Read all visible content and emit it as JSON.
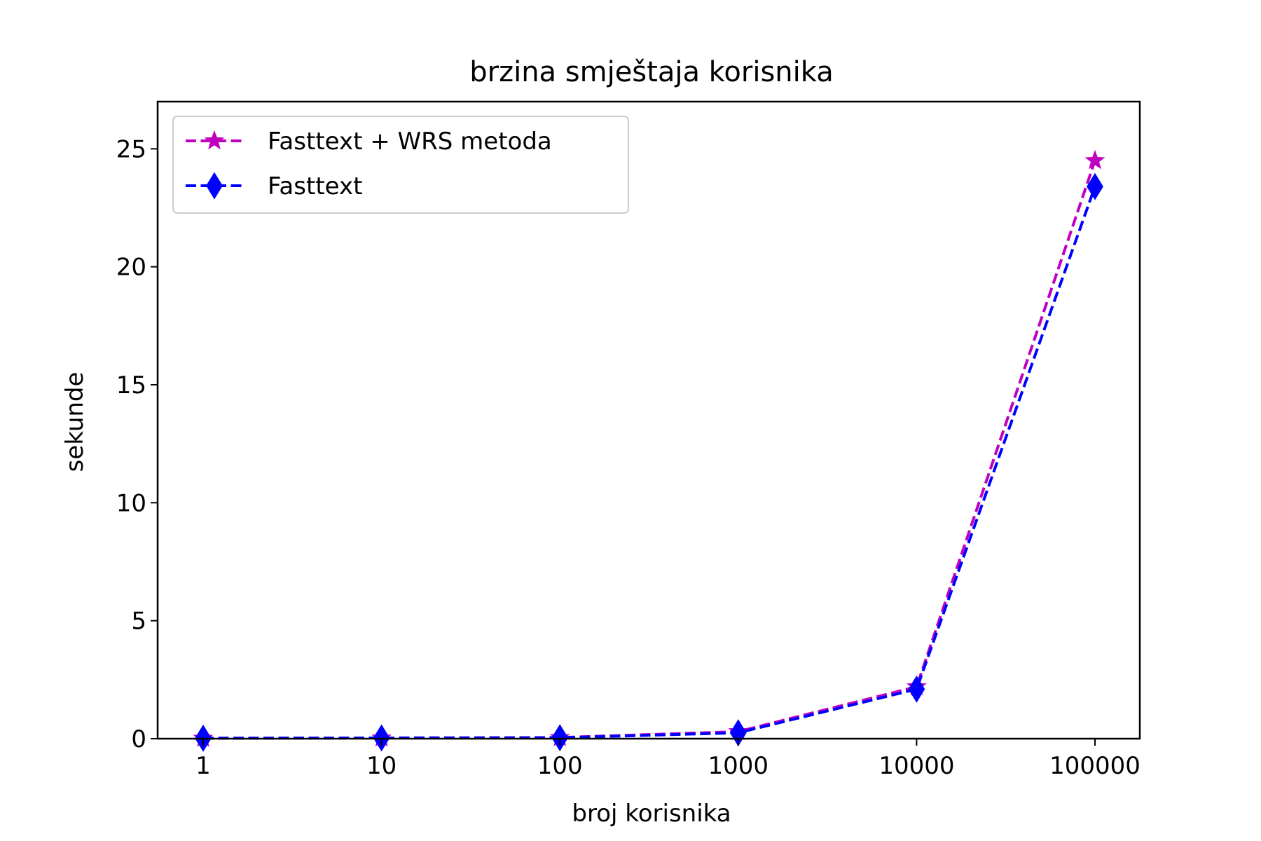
{
  "chart_data": {
    "type": "line",
    "title": "brzina smještaja korisnika",
    "xlabel": "broj korisnika",
    "ylabel": "sekunde",
    "x_scale": "log",
    "categories": [
      "1",
      "10",
      "100",
      "1000",
      "10000",
      "100000"
    ],
    "x": [
      1,
      10,
      100,
      1000,
      10000,
      100000
    ],
    "ylim": [
      0,
      27
    ],
    "yticks": [
      0,
      5,
      10,
      15,
      20,
      25
    ],
    "grid": false,
    "legend_position": "upper-left",
    "series": [
      {
        "name": "Fasttext + WRS metoda",
        "values": [
          0.02,
          0.03,
          0.05,
          0.3,
          2.2,
          24.5
        ],
        "color": "#bf00bf",
        "marker": "star",
        "linestyle": "dashed"
      },
      {
        "name": "Fasttext",
        "values": [
          0.02,
          0.03,
          0.04,
          0.25,
          2.1,
          23.4
        ],
        "color": "#0000ff",
        "marker": "thin-diamond",
        "linestyle": "dashed"
      }
    ]
  }
}
